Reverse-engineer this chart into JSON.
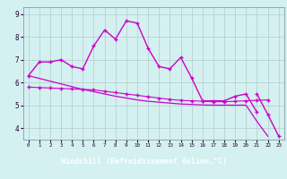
{
  "xlabel": "Windchill (Refroidissement éolien,°C)",
  "background_color": "#d4f0f0",
  "xlabel_bg": "#9966aa",
  "xlabel_color": "#ffffff",
  "grid_color": "#b0cccc",
  "line_color": "#cc00cc",
  "x": [
    0,
    1,
    2,
    3,
    4,
    5,
    6,
    7,
    8,
    9,
    10,
    11,
    12,
    13,
    14,
    15,
    16,
    17,
    18,
    19,
    20,
    21,
    22,
    23
  ],
  "line1": [
    6.3,
    6.9,
    6.9,
    7.0,
    6.7,
    6.6,
    7.6,
    8.3,
    7.9,
    8.7,
    8.6,
    7.5,
    6.7,
    6.6,
    7.1,
    6.2,
    5.2,
    5.2,
    5.2,
    5.4,
    5.5,
    4.7,
    null,
    null
  ],
  "line2": [
    null,
    null,
    null,
    null,
    null,
    null,
    null,
    null,
    null,
    null,
    null,
    null,
    null,
    null,
    null,
    null,
    null,
    null,
    null,
    null,
    null,
    5.5,
    4.6,
    3.65
  ],
  "line3": [
    5.8,
    5.78,
    5.76,
    5.74,
    5.72,
    5.7,
    5.68,
    5.62,
    5.56,
    5.5,
    5.44,
    5.38,
    5.32,
    5.26,
    5.22,
    5.2,
    5.18,
    5.16,
    5.16,
    5.18,
    5.2,
    5.22,
    5.24,
    null
  ],
  "line4": [
    6.3,
    6.18,
    6.06,
    5.94,
    5.82,
    5.7,
    5.6,
    5.5,
    5.4,
    5.32,
    5.24,
    5.18,
    5.14,
    5.1,
    5.06,
    5.04,
    5.02,
    5.01,
    5.01,
    5.01,
    5.01,
    4.3,
    3.65,
    null
  ],
  "ylim": [
    3.5,
    9.3
  ],
  "yticks": [
    4,
    5,
    6,
    7,
    8,
    9
  ],
  "xticks": [
    0,
    1,
    2,
    3,
    4,
    5,
    6,
    7,
    8,
    9,
    10,
    11,
    12,
    13,
    14,
    15,
    16,
    17,
    18,
    19,
    20,
    21,
    22,
    23
  ]
}
